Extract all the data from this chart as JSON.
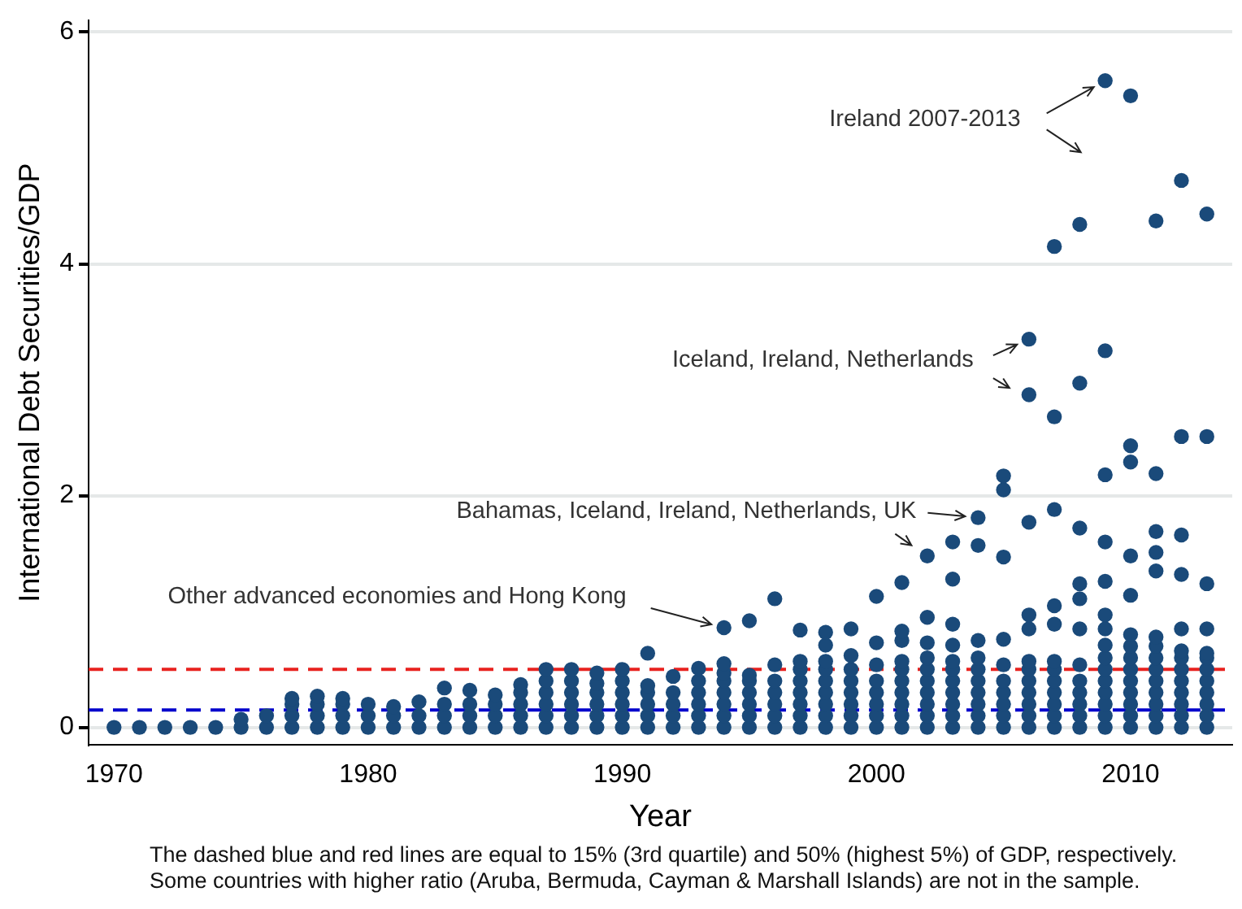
{
  "chart_data": {
    "type": "scatter",
    "xlabel": "Year",
    "ylabel": "International Debt Securities/GDP",
    "xlim": [
      1969,
      2014
    ],
    "xticks": [
      1970,
      1980,
      1990,
      2000,
      2010
    ],
    "ylim": [
      -0.15,
      6.1
    ],
    "yticks": [
      0,
      2,
      4,
      6
    ],
    "grid": "y",
    "marker": "circle",
    "series": [
      {
        "color": "#1a4a7a",
        "x": [
          1970,
          1971,
          1972,
          1973,
          1974,
          1975,
          1975,
          1976,
          1976,
          1977,
          1977,
          1977,
          1977,
          1978,
          1978,
          1978,
          1978,
          1979,
          1979,
          1979,
          1979,
          1980,
          1980,
          1980,
          1981,
          1981,
          1981,
          1982,
          1982,
          1982,
          1983,
          1983,
          1983,
          1983,
          1984,
          1984,
          1984,
          1984,
          1985,
          1985,
          1985,
          1985,
          1986,
          1986,
          1986,
          1986,
          1986,
          1987,
          1987,
          1987,
          1987,
          1987,
          1987,
          1988,
          1988,
          1988,
          1988,
          1988,
          1988,
          1989,
          1989,
          1989,
          1989,
          1989,
          1989,
          1990,
          1990,
          1990,
          1990,
          1990,
          1990,
          1991,
          1991,
          1991,
          1991,
          1991,
          1991,
          1992,
          1992,
          1992,
          1992,
          1992,
          1993,
          1993,
          1993,
          1993,
          1993,
          1993,
          1994,
          1994,
          1994,
          1994,
          1994,
          1994,
          1994,
          1994,
          1995,
          1995,
          1995,
          1995,
          1995,
          1995,
          1995,
          1996,
          1996,
          1996,
          1996,
          1996,
          1996,
          1996,
          1997,
          1997,
          1997,
          1997,
          1997,
          1997,
          1997,
          1997,
          1998,
          1998,
          1998,
          1998,
          1998,
          1998,
          1998,
          1998,
          1998,
          1999,
          1999,
          1999,
          1999,
          1999,
          1999,
          1999,
          1999,
          2000,
          2000,
          2000,
          2000,
          2000,
          2000,
          2000,
          2000,
          2001,
          2001,
          2001,
          2001,
          2001,
          2001,
          2001,
          2001,
          2001,
          2001,
          2002,
          2002,
          2002,
          2002,
          2002,
          2002,
          2002,
          2002,
          2002,
          2002,
          2003,
          2003,
          2003,
          2003,
          2003,
          2003,
          2003,
          2003,
          2003,
          2003,
          2003,
          2004,
          2004,
          2004,
          2004,
          2004,
          2004,
          2004,
          2004,
          2004,
          2004,
          2005,
          2005,
          2005,
          2005,
          2005,
          2005,
          2005,
          2005,
          2005,
          2005,
          2006,
          2006,
          2006,
          2006,
          2006,
          2006,
          2006,
          2006,
          2006,
          2006,
          2006,
          2006,
          2007,
          2007,
          2007,
          2007,
          2007,
          2007,
          2007,
          2007,
          2007,
          2007,
          2007,
          2007,
          2008,
          2008,
          2008,
          2008,
          2008,
          2008,
          2008,
          2008,
          2008,
          2008,
          2008,
          2008,
          2009,
          2009,
          2009,
          2009,
          2009,
          2009,
          2009,
          2009,
          2009,
          2009,
          2009,
          2009,
          2009,
          2009,
          2009,
          2010,
          2010,
          2010,
          2010,
          2010,
          2010,
          2010,
          2010,
          2010,
          2010,
          2010,
          2010,
          2010,
          2010,
          2011,
          2011,
          2011,
          2011,
          2011,
          2011,
          2011,
          2011,
          2011,
          2011,
          2011,
          2011,
          2011,
          2011,
          2012,
          2012,
          2012,
          2012,
          2012,
          2012,
          2012,
          2012,
          2012,
          2012,
          2012,
          2012,
          2012,
          2013,
          2013,
          2013,
          2013,
          2013,
          2013,
          2013,
          2013,
          2013,
          2013,
          2013,
          2013
        ],
        "values": [
          0,
          0,
          0,
          0,
          0,
          0,
          0.07,
          0,
          0.1,
          0,
          0.1,
          0.2,
          0.25,
          0,
          0.1,
          0.2,
          0.27,
          0,
          0.1,
          0.2,
          0.25,
          0,
          0.1,
          0.2,
          0,
          0.1,
          0.18,
          0,
          0.1,
          0.22,
          0,
          0.1,
          0.2,
          0.34,
          0,
          0.1,
          0.2,
          0.32,
          0,
          0.1,
          0.2,
          0.28,
          0,
          0.1,
          0.2,
          0.3,
          0.37,
          0,
          0.1,
          0.2,
          0.3,
          0.4,
          0.5,
          0,
          0.1,
          0.2,
          0.3,
          0.4,
          0.5,
          0,
          0.1,
          0.2,
          0.3,
          0.38,
          0.47,
          0,
          0.1,
          0.2,
          0.3,
          0.4,
          0.5,
          0,
          0.1,
          0.2,
          0.3,
          0.36,
          0.64,
          0,
          0.1,
          0.2,
          0.3,
          0.44,
          0,
          0.1,
          0.2,
          0.3,
          0.4,
          0.51,
          0,
          0.1,
          0.2,
          0.3,
          0.4,
          0.47,
          0.55,
          0.86,
          0,
          0.1,
          0.2,
          0.3,
          0.4,
          0.45,
          0.92,
          0,
          0.1,
          0.2,
          0.3,
          0.4,
          0.54,
          1.11,
          0,
          0.1,
          0.2,
          0.3,
          0.4,
          0.5,
          0.57,
          0.84,
          0,
          0.1,
          0.2,
          0.3,
          0.4,
          0.5,
          0.57,
          0.71,
          0.82,
          0,
          0.1,
          0.2,
          0.3,
          0.4,
          0.5,
          0.62,
          0.85,
          0,
          0.1,
          0.2,
          0.3,
          0.4,
          0.54,
          0.73,
          1.13,
          0,
          0.1,
          0.2,
          0.3,
          0.4,
          0.5,
          0.57,
          0.75,
          0.83,
          1.25,
          0,
          0.1,
          0.2,
          0.3,
          0.4,
          0.5,
          0.6,
          0.73,
          0.95,
          1.48,
          0,
          0.1,
          0.2,
          0.3,
          0.4,
          0.5,
          0.57,
          0.71,
          0.89,
          1.28,
          1.6,
          0,
          0.1,
          0.2,
          0.3,
          0.4,
          0.5,
          0.6,
          0.75,
          1.57,
          1.81,
          0,
          0.1,
          0.2,
          0.3,
          0.4,
          0.54,
          0.76,
          1.47,
          2.05,
          2.17,
          0,
          0.1,
          0.2,
          0.3,
          0.4,
          0.5,
          0.57,
          0.85,
          0.97,
          1.77,
          2.87,
          3.35,
          0,
          0.1,
          0.2,
          0.3,
          0.4,
          0.5,
          0.57,
          0.89,
          1.05,
          1.88,
          2.68,
          4.15,
          0,
          0.1,
          0.2,
          0.3,
          0.4,
          0.54,
          0.85,
          1.11,
          1.24,
          1.72,
          2.97,
          4.34,
          0,
          0.1,
          0.2,
          0.3,
          0.4,
          0.5,
          0.6,
          0.71,
          0.85,
          0.97,
          1.26,
          1.6,
          2.18,
          3.25,
          5.58,
          0,
          0.1,
          0.2,
          0.3,
          0.4,
          0.5,
          0.6,
          0.7,
          0.8,
          1.14,
          1.48,
          2.29,
          2.43,
          5.45,
          0,
          0.1,
          0.2,
          0.3,
          0.4,
          0.5,
          0.6,
          0.7,
          0.78,
          1.35,
          1.51,
          1.69,
          2.19,
          4.37,
          0,
          0.1,
          0.2,
          0.3,
          0.4,
          0.5,
          0.6,
          0.66,
          0.85,
          1.32,
          1.66,
          2.51,
          4.72,
          0,
          0.1,
          0.2,
          0.3,
          0.4,
          0.5,
          0.6,
          0.64,
          0.85,
          1.24,
          2.51,
          4.43
        ]
      }
    ],
    "ref_lines": [
      {
        "axis": "y",
        "value": 0.15,
        "color": "#0000cc",
        "line_style": "dashed"
      },
      {
        "axis": "y",
        "value": 0.5,
        "color": "#e8221f",
        "line_style": "dashed"
      }
    ],
    "annotations": [
      {
        "text": "Ireland 2007-2013",
        "x": 2009,
        "y": 5.58
      },
      {
        "text": "Iceland, Ireland, Netherlands",
        "x": 2006,
        "y": 3.35
      },
      {
        "text": "Bahamas, Iceland, Ireland, Netherlands, UK",
        "x": 2004,
        "y": 1.81
      },
      {
        "text": "Other advanced economies and Hong Kong",
        "x": 1994,
        "y": 0.86
      },
      "The dashed blue and red lines are equal to 15% (3rd quartile) and 50% (highest 5%) of GDP, respectively.",
      "Some countries with higher ratio (Aruba, Bermuda, Cayman & Marshall Islands) are not in the sample."
    ]
  }
}
